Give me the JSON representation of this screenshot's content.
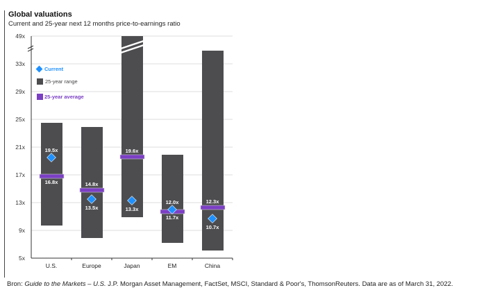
{
  "chart_data": {
    "type": "bar",
    "title": "Global valuations",
    "subtitle": "Current and 25-year next 12 months price-to-earnings ratio",
    "categories": [
      "U.S.",
      "Europe",
      "Japan",
      "EM",
      "China"
    ],
    "yticks": [
      5,
      9,
      13,
      17,
      21,
      25,
      29,
      33,
      49
    ],
    "ytick_labels": [
      "5x",
      "9x",
      "13x",
      "17x",
      "21x",
      "25x",
      "29x",
      "33x",
      "49x"
    ],
    "axis_break": "between 33x and 49x",
    "ylim": [
      5,
      49
    ],
    "range_low": [
      9.7,
      7.9,
      10.9,
      7.2,
      6.1
    ],
    "range_high": [
      24.5,
      23.9,
      49,
      19.9,
      40.6
    ],
    "average": [
      16.8,
      14.8,
      19.6,
      11.7,
      12.3
    ],
    "average_labels": [
      "16.8x",
      "14.8x",
      "19.6x",
      "11.7x",
      "12.3x"
    ],
    "current": [
      19.5,
      13.5,
      13.3,
      12.0,
      10.7
    ],
    "current_labels": [
      "19.5x",
      "13.5x",
      "13.3x",
      "12.0x",
      "10.7x"
    ],
    "legend": [
      {
        "label": "Current",
        "color": "#1e90ff"
      },
      {
        "label": "25-year range",
        "color": "#4d4d50"
      },
      {
        "label": "25-year average",
        "color": "#7b3fc4"
      }
    ],
    "legend_position": "top-left"
  },
  "footer": {
    "prefix": "Bron: ",
    "source_italic": "Guide to the Markets – U.S.",
    "rest": " J.P. Morgan Asset Management, FactSet, MSCI, Standard & Poor's, ThomsonReuters. Data are as of March 31, 2022."
  }
}
